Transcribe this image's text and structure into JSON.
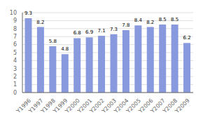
{
  "chart_data": {
    "type": "bar",
    "categories": [
      "Y1996",
      "Y1997",
      "Y1998",
      "Y1999",
      "Y2000",
      "Y2001",
      "Y2002",
      "Y2003",
      "Y2004",
      "Y2005",
      "Y2006",
      "Y2007",
      "Y2008",
      "Y2009"
    ],
    "values": [
      9.3,
      8.2,
      5.8,
      4.8,
      6.8,
      6.9,
      7.1,
      7.3,
      7.8,
      8.4,
      8.2,
      8.5,
      8.5,
      6.2
    ],
    "color": "#8899dd",
    "ylim": [
      0,
      10
    ],
    "yticks": [
      0,
      1,
      2,
      3,
      4,
      5,
      6,
      7,
      8,
      9,
      10
    ],
    "grid": true,
    "data_labels": true
  }
}
